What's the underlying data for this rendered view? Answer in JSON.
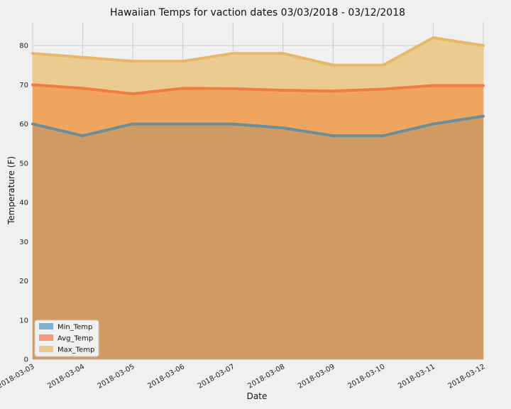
{
  "chart_data": {
    "type": "area",
    "title": "Hawaiian Temps for vaction dates 03/03/2018 - 03/12/2018",
    "xlabel": "Date",
    "ylabel": "Temperature (F)",
    "categories": [
      "2018-03-03",
      "2018-03-04",
      "2018-03-05",
      "2018-03-06",
      "2018-03-07",
      "2018-03-08",
      "2018-03-09",
      "2018-03-10",
      "2018-03-11",
      "2018-03-12"
    ],
    "ylim": [
      0,
      86
    ],
    "yticks": [
      0,
      10,
      20,
      30,
      40,
      50,
      60,
      70,
      80
    ],
    "grid": true,
    "stacked": false,
    "legend_position": "lower-left",
    "series": [
      {
        "name": "Min_Temp",
        "values": [
          60,
          57,
          60,
          60,
          60,
          59,
          57,
          57,
          60,
          62
        ],
        "fill": "#6d8fa8",
        "line": "#6a8e9a",
        "legend_color": "#7fb1d3"
      },
      {
        "name": "Avg_Temp",
        "values": [
          70.0,
          69.1,
          67.7,
          69.1,
          69.0,
          68.6,
          68.4,
          68.9,
          69.8,
          69.8
        ],
        "fill": "#f0a55e",
        "line": "#f07b45",
        "legend_color": "#f49a7c"
      },
      {
        "name": "Max_Temp",
        "values": [
          78,
          77,
          76,
          76,
          78,
          78,
          75,
          75,
          82,
          80
        ],
        "fill": "#ebcb8f",
        "line": "#e8b86a",
        "legend_color": "#ecc78e"
      }
    ],
    "min_area_color": "#cf9b62"
  }
}
